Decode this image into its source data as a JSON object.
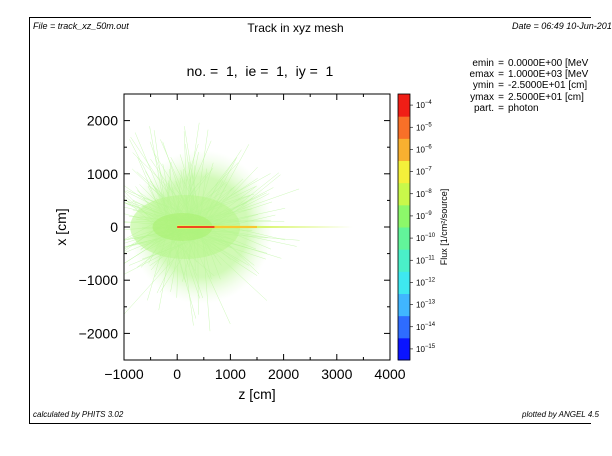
{
  "header": {
    "file": "File = track_xz_50m.out",
    "title": "Track in xyz mesh",
    "date": "Date = 06:49 10-Jun-201"
  },
  "footer": {
    "left": "calculated by PHITS 3.02",
    "right": "plotted by ANGEL 4.5"
  },
  "subtitle": "no. =  1,  ie =  1,  iy =  1",
  "params": [
    {
      "key": "emin",
      "value": "0.0000E+00 [MeV"
    },
    {
      "key": "emax",
      "value": "1.0000E+03 [MeV"
    },
    {
      "key": "ymin",
      "value": "-2.5000E+01 [cm]"
    },
    {
      "key": "ymax",
      "value": "2.5000E+01 [cm]"
    },
    {
      "key": "part.",
      "value": "photon"
    }
  ],
  "chart_data": {
    "type": "heatmap",
    "xlabel": "z [cm]",
    "ylabel": "x [cm]",
    "xlim": [
      -1000,
      4000
    ],
    "ylim": [
      -2500,
      2500
    ],
    "xticks": [
      -1000,
      0,
      1000,
      2000,
      3000,
      4000
    ],
    "yticks": [
      -2000,
      -1000,
      0,
      1000,
      2000
    ],
    "colorbar": {
      "label": "Flux [1/cm²/source]",
      "scale": "log",
      "range_exponents": [
        -15.5,
        -3.5
      ],
      "tick_exponents": [
        -4,
        -5,
        -6,
        -7,
        -8,
        -9,
        -10,
        -11,
        -12,
        -13,
        -14,
        -15
      ],
      "colors": [
        "#0a14ff",
        "#2e6cff",
        "#40b6ff",
        "#3ee8f0",
        "#4af0c8",
        "#62f59a",
        "#8cf86a",
        "#c8f84a",
        "#f4f03a",
        "#f8b030",
        "#f87028",
        "#f01e16"
      ]
    },
    "features": {
      "source_point_z": 0,
      "beam_direction": "+z",
      "beam_end_z": 3300,
      "beam_peak_flux_exp": -4,
      "cloud_center_z": 450,
      "cloud_halfwidth_z": 1000,
      "cloud_halfwidth_x": 1000,
      "cloud_flux_exp": -9
    }
  }
}
